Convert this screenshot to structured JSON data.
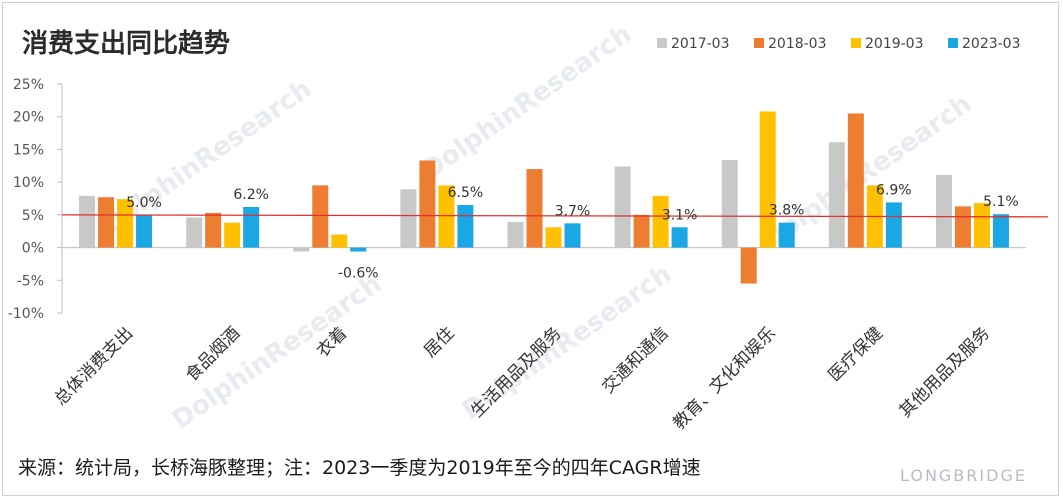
{
  "chart_data": {
    "type": "bar",
    "title": "消费支出同比趋势",
    "categories": [
      "总体消费支出",
      "食品烟酒",
      "衣着",
      "居住",
      "生活用品及服务",
      "交通和通信",
      "教育、文化和娱乐",
      "医疗保健",
      "其他用品及服务"
    ],
    "series": [
      {
        "name": "2017-03",
        "color": "#c8c8c8",
        "values": [
          7.9,
          4.6,
          -0.6,
          8.9,
          3.9,
          12.4,
          13.4,
          16.1,
          11.1
        ]
      },
      {
        "name": "2018-03",
        "color": "#ed7d31",
        "values": [
          7.7,
          5.3,
          9.5,
          13.3,
          12.0,
          5.0,
          -5.5,
          20.5,
          6.3
        ]
      },
      {
        "name": "2019-03",
        "color": "#ffc000",
        "values": [
          7.4,
          3.8,
          2.0,
          9.5,
          3.1,
          7.9,
          20.8,
          9.5,
          6.8
        ]
      },
      {
        "name": "2023-03",
        "color": "#1aa7e3",
        "values": [
          5.0,
          6.2,
          -0.6,
          6.5,
          3.7,
          3.1,
          3.8,
          6.9,
          5.1
        ]
      }
    ],
    "data_labels": [
      "5.0%",
      "6.2%",
      "-0.6%",
      "6.5%",
      "3.7%",
      "3.1%",
      "3.8%",
      "6.9%",
      "5.1%"
    ],
    "y_ticks": [
      "25%",
      "20%",
      "15%",
      "10%",
      "5%",
      "0%",
      "-5%",
      "-10%"
    ],
    "ylim": [
      -10,
      25
    ],
    "reference_line": {
      "value": 5,
      "color": "#e03030"
    },
    "legend_position": "top-right",
    "grid": false
  },
  "source_note": "来源：统计局，长桥海豚整理；注：2023一季度为2019年至今的四年CAGR增速",
  "watermark": {
    "text": "DolphinResearch",
    "brand": "LONGBRIDGE"
  }
}
